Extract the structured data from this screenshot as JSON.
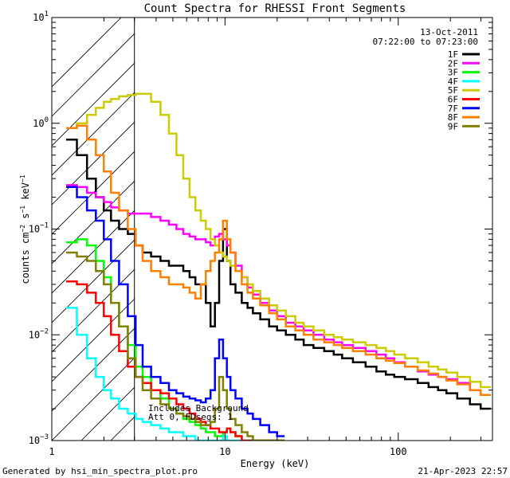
{
  "chart_data": {
    "type": "line",
    "title": "Count Spectra for RHESSI Front Segments",
    "xlabel": "Energy (keV)",
    "ylabel": "counts cm⁻² s⁻¹ keV⁻¹",
    "xscale": "log",
    "yscale": "log",
    "xlim": [
      1,
      350
    ],
    "ylim": [
      0.001,
      10
    ],
    "x_ticks": [
      {
        "value": 1,
        "label": "1"
      },
      {
        "value": 10,
        "label": "10"
      },
      {
        "value": 100,
        "label": "100"
      }
    ],
    "y_ticks": [
      {
        "value": 0.001,
        "base": "10",
        "exp": "−3"
      },
      {
        "value": 0.01,
        "base": "10",
        "exp": "−2"
      },
      {
        "value": 0.1,
        "base": "10",
        "exp": "−1"
      },
      {
        "value": 1,
        "base": "10",
        "exp": "0"
      },
      {
        "value": 10,
        "base": "10",
        "exp": "1"
      }
    ],
    "excluded_region": [
      1,
      3
    ],
    "date": "13-Oct-2011",
    "time_range": "07:22:00 to 07:23:00",
    "note_lines": [
      "Includes Background",
      "Att 0, FDsegs: 1"
    ],
    "legend_position": "top-right",
    "series": [
      {
        "name": "1F",
        "color": "#000000",
        "x": [
          1.3,
          1.5,
          1.7,
          1.9,
          2.1,
          2.3,
          2.6,
          2.9,
          3.2,
          3.5,
          4,
          4.5,
          5,
          5.5,
          6,
          6.5,
          7,
          7.5,
          8,
          8.5,
          9,
          9.5,
          10,
          10.5,
          11,
          12,
          13,
          14,
          15,
          17,
          19,
          21,
          24,
          27,
          30,
          35,
          40,
          45,
          50,
          60,
          70,
          80,
          90,
          100,
          120,
          140,
          160,
          180,
          200,
          240,
          280,
          320
        ],
        "y": [
          0.7,
          0.5,
          0.3,
          0.2,
          0.15,
          0.12,
          0.1,
          0.09,
          0.07,
          0.06,
          0.055,
          0.05,
          0.045,
          0.045,
          0.04,
          0.035,
          0.03,
          0.03,
          0.02,
          0.012,
          0.02,
          0.05,
          0.1,
          0.05,
          0.03,
          0.025,
          0.02,
          0.018,
          0.016,
          0.014,
          0.012,
          0.011,
          0.01,
          0.009,
          0.008,
          0.0075,
          0.007,
          0.0065,
          0.006,
          0.0055,
          0.005,
          0.0045,
          0.0042,
          0.004,
          0.0038,
          0.0035,
          0.0032,
          0.003,
          0.0028,
          0.0025,
          0.0022,
          0.002
        ]
      },
      {
        "name": "2F",
        "color": "#ff00ff",
        "x": [
          1.3,
          1.5,
          1.7,
          1.9,
          2.1,
          2.3,
          2.6,
          2.9,
          3.2,
          3.5,
          4,
          4.5,
          5,
          5.5,
          6,
          6.5,
          7,
          7.5,
          8,
          8.5,
          9,
          9.5,
          10,
          10.5,
          11,
          12,
          13,
          14,
          15,
          17,
          19,
          21,
          24,
          27,
          30,
          35,
          40,
          45,
          50,
          60,
          70,
          80,
          90,
          100,
          120,
          140,
          160,
          180,
          200,
          240,
          280,
          320
        ],
        "y": [
          0.26,
          0.25,
          0.22,
          0.2,
          0.18,
          0.16,
          0.15,
          0.14,
          0.14,
          0.14,
          0.13,
          0.12,
          0.11,
          0.1,
          0.09,
          0.085,
          0.08,
          0.08,
          0.075,
          0.07,
          0.085,
          0.09,
          0.08,
          0.07,
          0.06,
          0.045,
          0.035,
          0.028,
          0.024,
          0.02,
          0.017,
          0.015,
          0.013,
          0.012,
          0.011,
          0.01,
          0.009,
          0.0085,
          0.008,
          0.0075,
          0.007,
          0.0065,
          0.006,
          0.0055,
          0.005,
          0.0045,
          0.0042,
          0.004,
          0.0038,
          0.0035,
          0.003,
          0.0027
        ]
      },
      {
        "name": "3F",
        "color": "#00ff00",
        "x": [
          1.3,
          1.5,
          1.7,
          1.9,
          2.1,
          2.3,
          2.6,
          2.9,
          3.2,
          3.5,
          4,
          4.5,
          5,
          5.5,
          6,
          6.5,
          7,
          7.5,
          8,
          8.5,
          9,
          9.5,
          10,
          10.5,
          11,
          12,
          13,
          14,
          15,
          17,
          19,
          21
        ],
        "y": [
          0.075,
          0.08,
          0.07,
          0.05,
          0.035,
          0.02,
          0.012,
          0.008,
          0.005,
          0.004,
          0.003,
          0.0025,
          0.002,
          0.0018,
          0.0016,
          0.0015,
          0.0014,
          0.0013,
          0.0012,
          0.0012,
          0.0011,
          0.0011,
          0.0012,
          0.0013,
          0.0012,
          0.0011,
          0.001,
          0.001,
          0.001,
          0.001,
          0.001,
          0.001
        ]
      },
      {
        "name": "4F",
        "color": "#00ffff",
        "x": [
          1.3,
          1.5,
          1.7,
          1.9,
          2.1,
          2.3,
          2.6,
          2.9,
          3.2,
          3.5,
          4,
          4.5,
          5,
          5.5,
          6,
          6.5,
          7,
          7.5,
          8,
          8.5,
          9,
          9.5,
          10,
          10.5,
          11,
          12,
          13,
          14,
          15
        ],
        "y": [
          0.018,
          0.01,
          0.006,
          0.004,
          0.003,
          0.0025,
          0.002,
          0.0018,
          0.0016,
          0.0015,
          0.0014,
          0.0013,
          0.0012,
          0.0012,
          0.0011,
          0.0011,
          0.001,
          0.001,
          0.001,
          0.001,
          0.001,
          0.001,
          0.0011,
          0.001,
          0.001,
          0.001,
          0.001,
          0.001,
          0.001
        ]
      },
      {
        "name": "5F",
        "color": "#cccc00",
        "x": [
          1.3,
          1.5,
          1.7,
          1.9,
          2.1,
          2.3,
          2.6,
          2.9,
          3.2,
          3.5,
          4,
          4.5,
          5,
          5.5,
          6,
          6.5,
          7,
          7.5,
          8,
          8.5,
          9,
          9.5,
          10,
          10.5,
          11,
          12,
          13,
          14,
          15,
          17,
          19,
          21,
          24,
          27,
          30,
          35,
          40,
          45,
          50,
          60,
          70,
          80,
          90,
          100,
          120,
          140,
          160,
          180,
          200,
          240,
          280,
          320
        ],
        "y": [
          0.9,
          1.0,
          1.2,
          1.4,
          1.6,
          1.7,
          1.8,
          1.85,
          1.9,
          1.9,
          1.6,
          1.2,
          0.8,
          0.5,
          0.3,
          0.2,
          0.15,
          0.12,
          0.1,
          0.08,
          0.07,
          0.06,
          0.055,
          0.05,
          0.045,
          0.04,
          0.035,
          0.03,
          0.026,
          0.022,
          0.019,
          0.017,
          0.015,
          0.013,
          0.012,
          0.011,
          0.01,
          0.0095,
          0.009,
          0.0085,
          0.008,
          0.0075,
          0.007,
          0.0065,
          0.006,
          0.0055,
          0.005,
          0.0047,
          0.0044,
          0.004,
          0.0036,
          0.0032
        ]
      },
      {
        "name": "6F",
        "color": "#ff0000",
        "x": [
          1.3,
          1.5,
          1.7,
          1.9,
          2.1,
          2.3,
          2.6,
          2.9,
          3.2,
          3.5,
          4,
          4.5,
          5,
          5.5,
          6,
          6.5,
          7,
          7.5,
          8,
          8.5,
          9,
          9.5,
          10,
          10.5,
          11,
          12,
          13,
          14,
          15,
          17,
          19,
          21
        ],
        "y": [
          0.032,
          0.03,
          0.025,
          0.02,
          0.015,
          0.01,
          0.007,
          0.005,
          0.004,
          0.0035,
          0.003,
          0.0028,
          0.0025,
          0.0022,
          0.002,
          0.0018,
          0.0016,
          0.0015,
          0.0014,
          0.0013,
          0.0013,
          0.0012,
          0.0012,
          0.0013,
          0.0012,
          0.0011,
          0.001,
          0.001,
          0.001,
          0.001,
          0.001,
          0.001
        ]
      },
      {
        "name": "7F",
        "color": "#0000ff",
        "x": [
          1.3,
          1.5,
          1.7,
          1.9,
          2.1,
          2.3,
          2.6,
          2.9,
          3.2,
          3.5,
          4,
          4.5,
          5,
          5.5,
          6,
          6.5,
          7,
          7.5,
          8,
          8.5,
          9,
          9.5,
          10,
          10.5,
          11,
          12,
          13,
          14,
          15,
          17,
          19,
          21
        ],
        "y": [
          0.25,
          0.2,
          0.15,
          0.12,
          0.08,
          0.05,
          0.03,
          0.015,
          0.008,
          0.005,
          0.004,
          0.0035,
          0.003,
          0.0028,
          0.0026,
          0.0025,
          0.0024,
          0.0023,
          0.0025,
          0.003,
          0.006,
          0.009,
          0.006,
          0.004,
          0.003,
          0.0025,
          0.002,
          0.0018,
          0.0016,
          0.0014,
          0.0012,
          0.0011
        ]
      },
      {
        "name": "8F",
        "color": "#ff8000",
        "x": [
          1.3,
          1.5,
          1.7,
          1.9,
          2.1,
          2.3,
          2.6,
          2.9,
          3.2,
          3.5,
          4,
          4.5,
          5,
          5.5,
          6,
          6.5,
          7,
          7.5,
          8,
          8.5,
          9,
          9.5,
          10,
          10.5,
          11,
          12,
          13,
          14,
          15,
          17,
          19,
          21,
          24,
          27,
          30,
          35,
          40,
          45,
          50,
          60,
          70,
          80,
          90,
          100,
          120,
          140,
          160,
          180,
          200,
          240,
          280,
          320
        ],
        "y": [
          0.9,
          0.95,
          0.7,
          0.5,
          0.35,
          0.22,
          0.15,
          0.1,
          0.07,
          0.05,
          0.04,
          0.035,
          0.03,
          0.03,
          0.028,
          0.025,
          0.022,
          0.03,
          0.04,
          0.05,
          0.06,
          0.08,
          0.12,
          0.08,
          0.06,
          0.04,
          0.03,
          0.025,
          0.022,
          0.019,
          0.016,
          0.014,
          0.012,
          0.011,
          0.01,
          0.009,
          0.0085,
          0.008,
          0.0075,
          0.007,
          0.0065,
          0.006,
          0.0057,
          0.0054,
          0.005,
          0.0046,
          0.0043,
          0.004,
          0.0037,
          0.0034,
          0.003,
          0.0027
        ]
      },
      {
        "name": "9F",
        "color": "#808000",
        "x": [
          1.3,
          1.5,
          1.7,
          1.9,
          2.1,
          2.3,
          2.6,
          2.9,
          3.2,
          3.5,
          4,
          4.5,
          5,
          5.5,
          6,
          6.5,
          7,
          7.5,
          8,
          8.5,
          9,
          9.5,
          10,
          10.5,
          11,
          12,
          13,
          14,
          15,
          17,
          19,
          21
        ],
        "y": [
          0.06,
          0.055,
          0.05,
          0.04,
          0.03,
          0.02,
          0.012,
          0.006,
          0.004,
          0.003,
          0.0025,
          0.0022,
          0.002,
          0.0018,
          0.0017,
          0.0016,
          0.0015,
          0.0014,
          0.0014,
          0.0015,
          0.002,
          0.004,
          0.003,
          0.002,
          0.0016,
          0.0014,
          0.0012,
          0.0011,
          0.001,
          0.001,
          0.001,
          0.001
        ]
      }
    ]
  },
  "footer": {
    "generated_by": "Generated by hsi_min_spectra_plot.pro",
    "timestamp": "21-Apr-2023 22:57"
  }
}
